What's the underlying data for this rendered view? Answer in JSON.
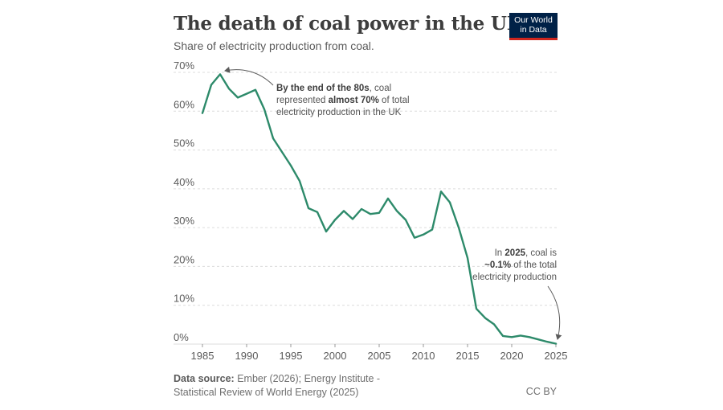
{
  "header": {
    "title": "The death of coal power in the UK",
    "subtitle": "Share of electricity production from coal.",
    "logo_line1": "Our World",
    "logo_line2": "in Data"
  },
  "footer": {
    "source_label": "Data source:",
    "source_text": "Ember (2026); Energy Institute -",
    "source_text2": "Statistical Review of World Energy (2025)",
    "license": "CC BY"
  },
  "annotations": {
    "peak_bold1": "By the end of the 80s",
    "peak_text1": ", coal",
    "peak_text2a": "represented ",
    "peak_bold2": "almost 70%",
    "peak_text2b": " of total",
    "peak_text3": "electricity production in the UK",
    "end_text1a": "In ",
    "end_bold1": "2025",
    "end_text1b": ", coal is",
    "end_bold2": "~0.1%",
    "end_text2": " of the total",
    "end_text3": "electricity production"
  },
  "colors": {
    "line": "#2d8a6a",
    "grid": "#dcdcdc",
    "text": "#5b5b5b"
  },
  "chart_data": {
    "type": "line",
    "title": "The death of coal power in the UK",
    "subtitle": "Share of electricity production from coal.",
    "xlabel": "",
    "ylabel": "",
    "xlim": [
      1985,
      2025
    ],
    "ylim": [
      0,
      70
    ],
    "y_ticks": [
      0,
      10,
      20,
      30,
      40,
      50,
      60,
      70
    ],
    "y_tick_labels": [
      "0%",
      "10%",
      "20%",
      "30%",
      "40%",
      "50%",
      "60%",
      "70%"
    ],
    "x_ticks": [
      1985,
      1990,
      1995,
      2000,
      2005,
      2010,
      2015,
      2020,
      2025
    ],
    "x_tick_labels": [
      "1985",
      "1990",
      "1995",
      "2000",
      "2005",
      "2010",
      "2015",
      "2020",
      "2025"
    ],
    "grid": "horizontal dashed",
    "series": [
      {
        "name": "Coal share",
        "x": [
          1985,
          1986,
          1987,
          1988,
          1989,
          1990,
          1991,
          1992,
          1993,
          1994,
          1995,
          1996,
          1997,
          1998,
          1999,
          2000,
          2001,
          2002,
          2003,
          2004,
          2005,
          2006,
          2007,
          2008,
          2009,
          2010,
          2011,
          2012,
          2013,
          2014,
          2015,
          2016,
          2017,
          2018,
          2019,
          2020,
          2021,
          2022,
          2023,
          2024,
          2025
        ],
        "values": [
          59.5,
          66.8,
          69.5,
          65.8,
          63.5,
          64.5,
          65.5,
          60.5,
          53,
          49.5,
          46,
          42,
          35,
          34,
          29,
          32,
          34.3,
          32.2,
          34.8,
          33.5,
          33.8,
          37.5,
          34.3,
          32,
          27.4,
          28.2,
          29.5,
          39.3,
          36.5,
          30,
          22.2,
          9.1,
          6.7,
          5.1,
          2.1,
          1.8,
          2.2,
          1.8,
          1.2,
          0.6,
          0.1
        ]
      }
    ],
    "annotations": [
      {
        "text": "By the end of the 80s, coal represented almost 70% of total electricity production in the UK",
        "target_x": 1987,
        "target_y": 69.5
      },
      {
        "text": "In 2025, coal is ~0.1% of the total electricity production",
        "target_x": 2025,
        "target_y": 0.1
      }
    ]
  }
}
